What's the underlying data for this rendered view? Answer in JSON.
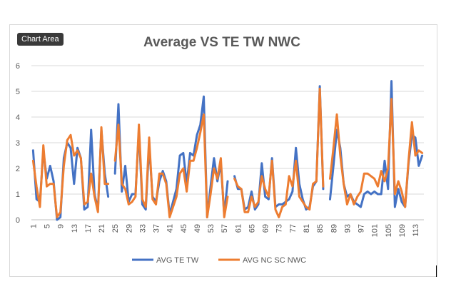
{
  "tooltip": "Chart Area",
  "chart_data": {
    "type": "line",
    "title": "Average VS TE TW NWC",
    "xlabel": "",
    "ylabel": "",
    "ylim": [
      0,
      6
    ],
    "yticks": [
      0,
      1,
      2,
      3,
      4,
      5,
      6
    ],
    "grid": true,
    "legend_position": "bottom",
    "x_tick_labels": [
      "1",
      "5",
      "9",
      "13",
      "17",
      "21",
      "25",
      "29",
      "33",
      "37",
      "41",
      "45",
      "49",
      "53",
      "57",
      "61",
      "65",
      "69",
      "73",
      "77",
      "81",
      "85",
      "89",
      "93",
      "97",
      "101",
      "105",
      "109",
      "113"
    ],
    "series": [
      {
        "name": "AVG TE TW",
        "color": "#4472c4",
        "values": [
          2.7,
          0.8,
          0.7,
          2.7,
          1.6,
          2.1,
          1.5,
          0.0,
          0.1,
          2.4,
          3.0,
          2.8,
          1.4,
          2.8,
          2.4,
          0.4,
          0.5,
          3.5,
          1.0,
          0.4,
          3.5,
          1.8,
          0.9,
          null,
          1.8,
          4.5,
          1.1,
          2.1,
          0.7,
          1.0,
          1.0,
          3.5,
          0.6,
          0.4,
          2.9,
          0.9,
          0.7,
          1.5,
          1.9,
          1.5,
          0.2,
          0.7,
          1.2,
          2.5,
          2.6,
          1.4,
          2.6,
          2.5,
          3.3,
          3.7,
          4.8,
          0.1,
          1.3,
          2.4,
          1.5,
          2.2,
          0.2,
          1.5,
          null,
          1.7,
          1.2,
          1.2,
          0.4,
          0.5,
          1.1,
          0.4,
          0.6,
          2.2,
          0.9,
          0.8,
          2.4,
          0.5,
          0.6,
          0.6,
          0.7,
          0.8,
          1.1,
          2.8,
          1.4,
          0.8,
          0.4,
          0.5,
          1.3,
          1.5,
          5.2,
          1.2,
          null,
          0.8,
          2.1,
          3.5,
          2.8,
          1.4,
          0.9,
          1.0,
          0.7,
          0.6,
          0.5,
          1.0,
          1.1,
          1.0,
          1.1,
          1.0,
          1.0,
          2.3,
          1.2,
          5.4,
          0.5,
          1.2,
          0.7,
          0.5,
          2.2,
          3.3,
          3.2,
          2.1,
          2.5
        ],
        "ignore": null
      },
      {
        "name": "AVG NC SC NWC",
        "color": "#ed7d31",
        "values": [
          2.3,
          1.3,
          0.5,
          2.9,
          1.3,
          1.4,
          1.4,
          0.1,
          0.3,
          2.1,
          3.1,
          3.3,
          2.5,
          2.7,
          2.4,
          0.6,
          0.7,
          1.8,
          0.9,
          0.3,
          3.6,
          1.4,
          1.4,
          null,
          2.3,
          3.7,
          1.4,
          1.2,
          0.6,
          0.7,
          0.9,
          3.7,
          0.8,
          0.5,
          3.2,
          0.8,
          0.6,
          1.8,
          1.8,
          1.4,
          0.1,
          0.5,
          0.9,
          1.8,
          2.0,
          1.1,
          2.3,
          2.3,
          2.8,
          3.4,
          4.1,
          0.1,
          1.0,
          2.0,
          1.6,
          2.4,
          0.1,
          0.9,
          null,
          1.6,
          1.3,
          1.2,
          0.3,
          0.3,
          0.9,
          0.5,
          0.7,
          1.7,
          1.2,
          0.9,
          2.3,
          0.4,
          0.1,
          0.5,
          0.6,
          1.7,
          1.3,
          2.3,
          0.9,
          0.7,
          0.5,
          0.4,
          1.4,
          1.5,
          5.1,
          1.3,
          null,
          1.6,
          2.8,
          4.1,
          2.5,
          1.4,
          0.6,
          1.0,
          0.6,
          0.9,
          1.1,
          1.8,
          1.8,
          1.7,
          1.6,
          1.3,
          1.9,
          1.5,
          2.0,
          4.7,
          1.0,
          1.5,
          1.1,
          0.5,
          2.3,
          3.8,
          2.5,
          2.7,
          2.6
        ]
      }
    ]
  }
}
